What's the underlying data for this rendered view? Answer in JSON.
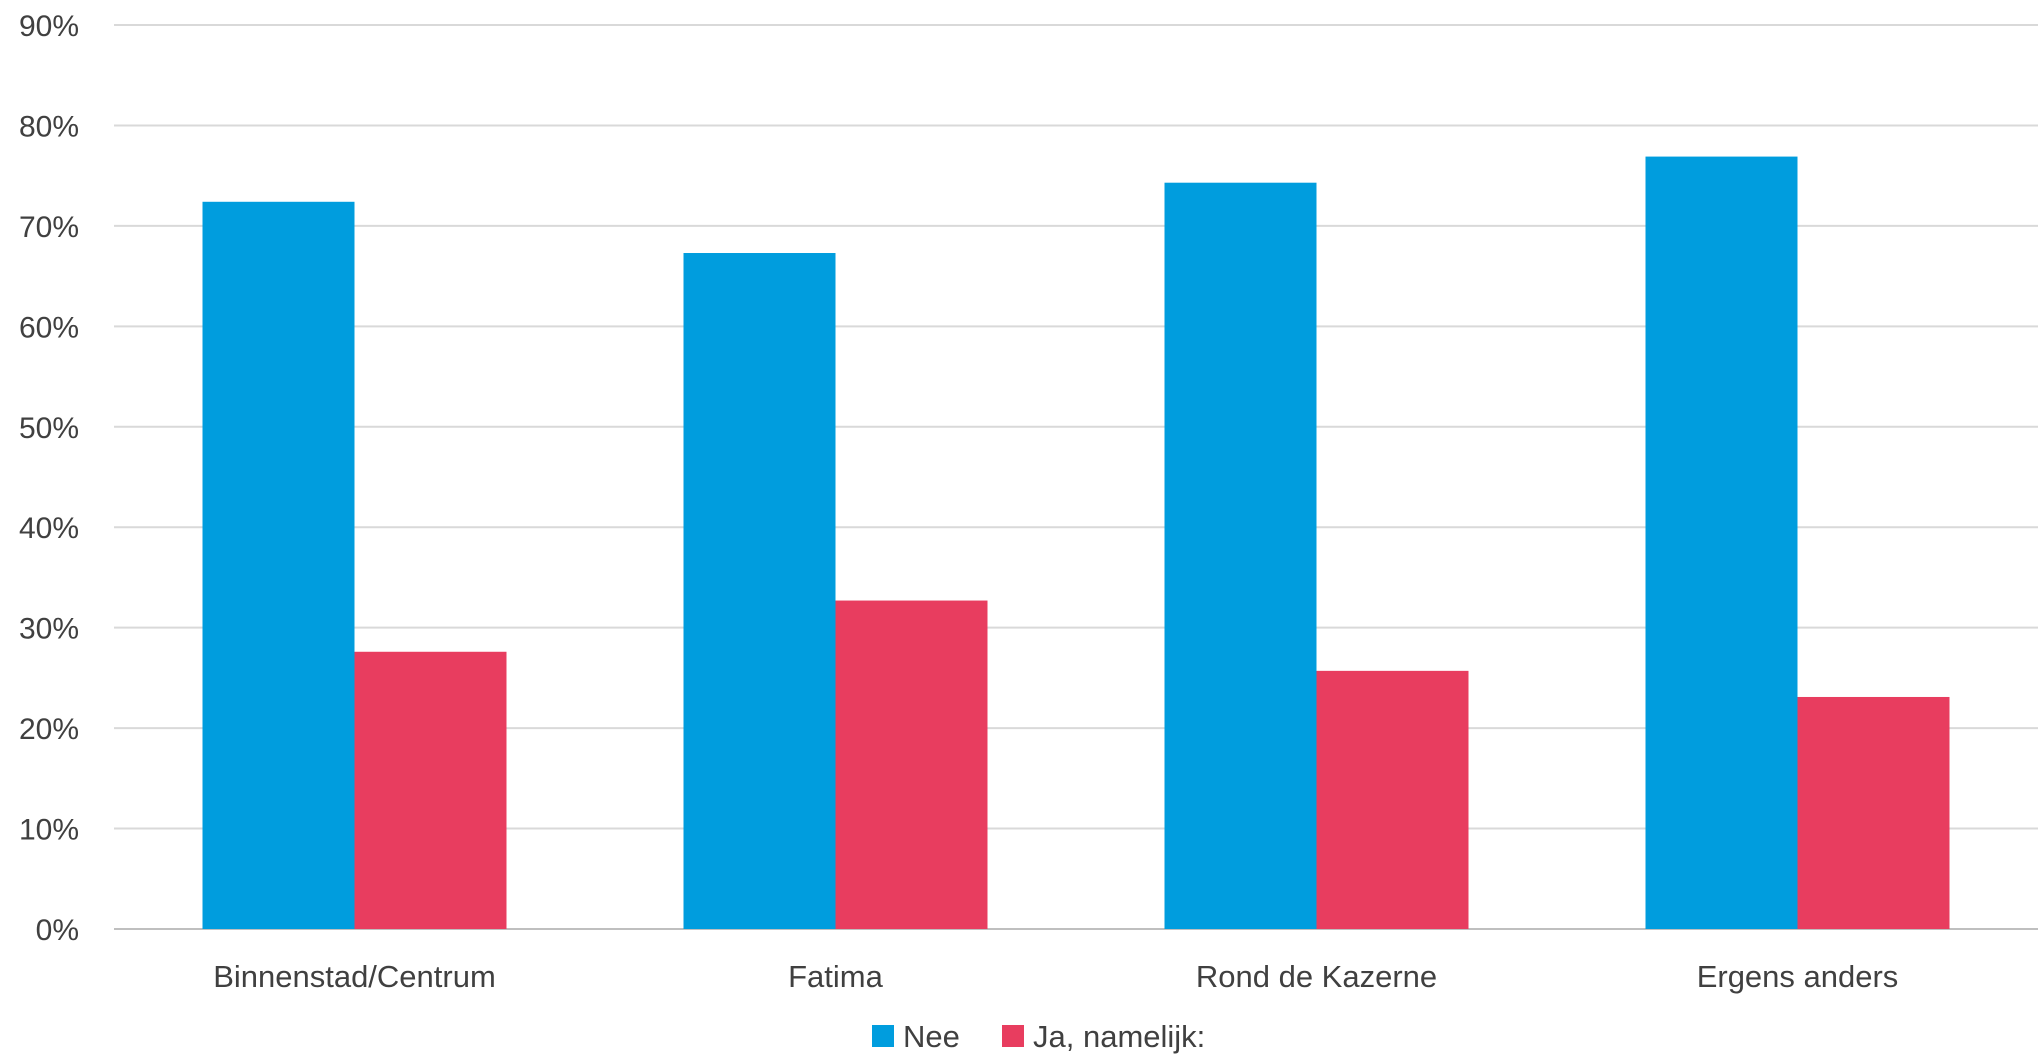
{
  "chart_data": {
    "type": "bar",
    "categories": [
      "Binnenstad/Centrum",
      "Fatima",
      "Rond de Kazerne",
      "Ergens anders"
    ],
    "series": [
      {
        "name": "Nee",
        "values": [
          72.4,
          67.3,
          74.3,
          76.9
        ],
        "color": "#009DDE"
      },
      {
        "name": "Ja, namelijk:",
        "values": [
          27.6,
          32.7,
          25.7,
          23.1
        ],
        "color": "#E83D5F"
      }
    ],
    "ylim": [
      0,
      90
    ],
    "yticks": [
      0,
      10,
      20,
      30,
      40,
      50,
      60,
      70,
      80,
      90
    ],
    "ytick_labels": [
      "0%",
      "10%",
      "20%",
      "30%",
      "40%",
      "50%",
      "60%",
      "70%",
      "80%",
      "90%"
    ],
    "grid": true,
    "legend": "bottom-center",
    "title": "",
    "xlabel": "",
    "ylabel": ""
  }
}
